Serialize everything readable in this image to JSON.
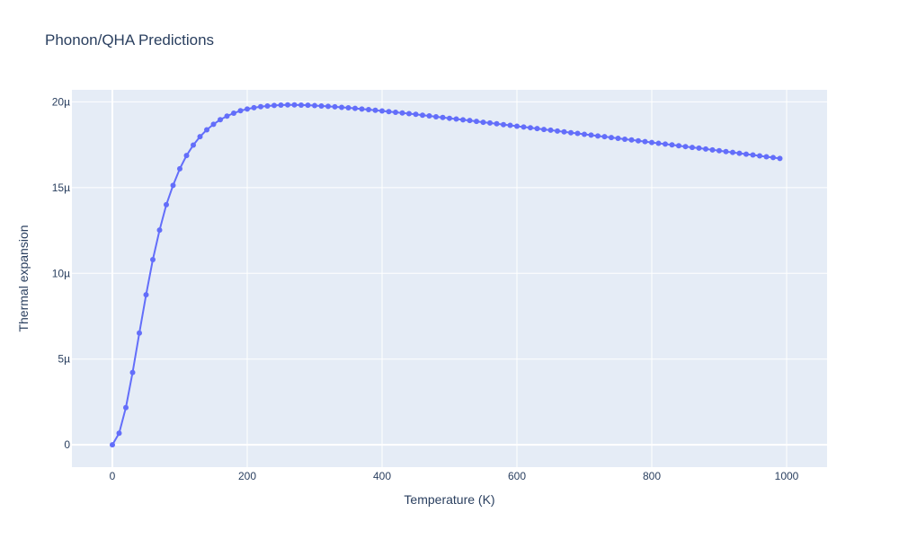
{
  "chart_data": {
    "type": "line",
    "title": "Phonon/QHA Predictions",
    "xlabel": "Temperature (K)",
    "ylabel": "Thermal expansion",
    "xlim": [
      -60,
      1060
    ],
    "ylim": [
      -1.3e-06,
      2.07e-05
    ],
    "x_ticks": [
      0,
      200,
      400,
      600,
      800,
      1000
    ],
    "x_tick_labels": [
      "0",
      "200",
      "400",
      "600",
      "800",
      "1000"
    ],
    "y_ticks": [
      0,
      5e-06,
      1e-05,
      1.5e-05,
      2e-05
    ],
    "y_tick_labels": [
      "0",
      "5µ",
      "10µ",
      "15µ",
      "20µ"
    ],
    "grid": true,
    "colors": {
      "line": "#636efa",
      "plot_bg": "#e5ecf6",
      "grid": "#ffffff",
      "text": "#2a3f5f"
    },
    "series": [
      {
        "mode": "lines+markers",
        "x": [
          0,
          10,
          20,
          30,
          40,
          50,
          60,
          70,
          80,
          90,
          100,
          110,
          120,
          130,
          140,
          150,
          160,
          170,
          180,
          190,
          200,
          210,
          220,
          230,
          240,
          250,
          260,
          270,
          280,
          290,
          300,
          310,
          320,
          330,
          340,
          350,
          360,
          370,
          380,
          390,
          400,
          410,
          420,
          430,
          440,
          450,
          460,
          470,
          480,
          490,
          500,
          510,
          520,
          530,
          540,
          550,
          560,
          570,
          580,
          590,
          600,
          610,
          620,
          630,
          640,
          650,
          660,
          670,
          680,
          690,
          700,
          710,
          720,
          730,
          740,
          750,
          760,
          770,
          780,
          790,
          800,
          810,
          820,
          830,
          840,
          850,
          860,
          870,
          880,
          890,
          900,
          910,
          920,
          930,
          940,
          950,
          960,
          970,
          980,
          990
        ],
        "y": [
          0,
          6.8e-07,
          2.17e-06,
          4.22e-06,
          6.52e-06,
          8.75e-06,
          1.08e-05,
          1.252e-05,
          1.4e-05,
          1.513e-05,
          1.61e-05,
          1.687e-05,
          1.748e-05,
          1.797e-05,
          1.837e-05,
          1.869e-05,
          1.896e-05,
          1.917e-05,
          1.934e-05,
          1.948e-05,
          1.958e-05,
          1.966e-05,
          1.972e-05,
          1.976e-05,
          1.979e-05,
          1.981e-05,
          1.982e-05,
          1.982e-05,
          1.981e-05,
          1.98e-05,
          1.978e-05,
          1.976e-05,
          1.974e-05,
          1.971e-05,
          1.968e-05,
          1.965e-05,
          1.962e-05,
          1.958e-05,
          1.955e-05,
          1.951e-05,
          1.947e-05,
          1.943e-05,
          1.939e-05,
          1.935e-05,
          1.931e-05,
          1.927e-05,
          1.922e-05,
          1.918e-05,
          1.913e-05,
          1.909e-05,
          1.904e-05,
          1.9e-05,
          1.895e-05,
          1.891e-05,
          1.886e-05,
          1.881e-05,
          1.877e-05,
          1.872e-05,
          1.867e-05,
          1.863e-05,
          1.858e-05,
          1.853e-05,
          1.849e-05,
          1.844e-05,
          1.839e-05,
          1.835e-05,
          1.83e-05,
          1.825e-05,
          1.82e-05,
          1.816e-05,
          1.811e-05,
          1.806e-05,
          1.801e-05,
          1.797e-05,
          1.792e-05,
          1.787e-05,
          1.782e-05,
          1.778e-05,
          1.773e-05,
          1.768e-05,
          1.763e-05,
          1.758e-05,
          1.754e-05,
          1.749e-05,
          1.744e-05,
          1.739e-05,
          1.734e-05,
          1.73e-05,
          1.725e-05,
          1.72e-05,
          1.715e-05,
          1.71e-05,
          1.705e-05,
          1.7e-05,
          1.695e-05,
          1.69e-05,
          1.685e-05,
          1.68e-05,
          1.675e-05,
          1.67e-05
        ]
      }
    ]
  }
}
